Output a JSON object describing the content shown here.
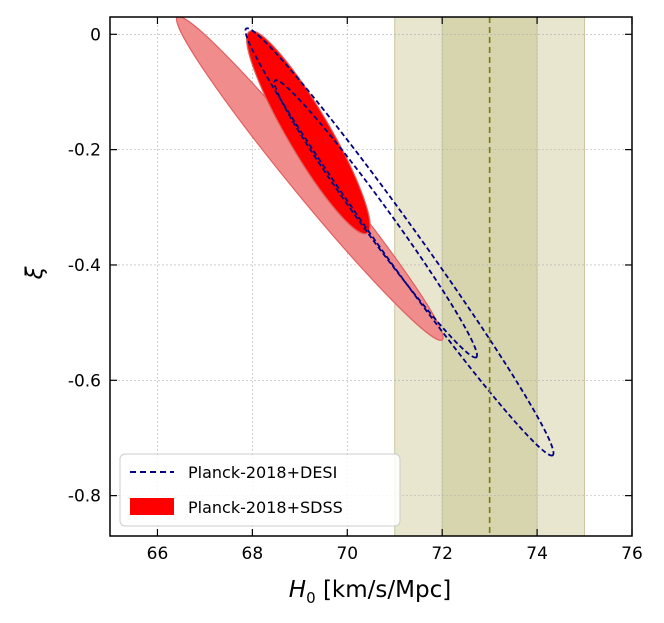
{
  "chart_data": {
    "type": "contour",
    "xlabel_symbol": "H",
    "xlabel_subscript": "0",
    "xlabel_units": "[km/s/Mpc]",
    "ylabel": "ξ",
    "xlim": [
      65,
      76
    ],
    "ylim": [
      -0.87,
      0.03
    ],
    "xticks": [
      66,
      68,
      70,
      72,
      74,
      76
    ],
    "xtick_labels": [
      "66",
      "68",
      "70",
      "72",
      "74",
      "76"
    ],
    "yticks": [
      0,
      -0.2,
      -0.4,
      -0.6,
      -0.8
    ],
    "ytick_labels": [
      "0",
      "-0.2",
      "-0.4",
      "-0.6",
      "-0.8"
    ],
    "grid": true,
    "legend_position": "lower-left",
    "bands": [
      {
        "name": "H0 2-sigma band",
        "x_range": [
          71,
          75
        ],
        "color": "#e8e6cf"
      },
      {
        "name": "H0 1-sigma band",
        "x_range": [
          72,
          74
        ],
        "color": "#d6d5ae"
      }
    ],
    "reference_line": {
      "x": 73,
      "color": "#7a7a0a",
      "style": "dashed"
    },
    "series": [
      {
        "name": "Planck-2018+SDSS",
        "kind": "filled",
        "color": "#ff0000",
        "contours": [
          {
            "level": "95%",
            "center": [
              69.21,
              -0.25
            ],
            "axis_end": [
              72.0,
              -0.53
            ],
            "half_width": 0.4,
            "fill": "#f08c8c"
          },
          {
            "level": "68%",
            "center": [
              69.18,
              -0.17
            ],
            "axis_end": [
              70.42,
              -0.345
            ],
            "half_width": 0.45,
            "fill": "#ff0000"
          }
        ]
      },
      {
        "name": "Planck-2018+DESI",
        "kind": "dashed",
        "color": "#000080",
        "contours": [
          {
            "level": "95%",
            "center": [
              71.1,
              -0.36
            ],
            "axis_end": [
              74.33,
              -0.73
            ],
            "half_width": 0.4
          },
          {
            "level": "68%",
            "center": [
              70.6,
              -0.32
            ],
            "axis_end": [
              72.72,
              -0.56
            ],
            "half_width": 0.31
          }
        ]
      }
    ],
    "legend": [
      {
        "label": "Planck-2018+DESI",
        "style": "dashed",
        "color": "#000080"
      },
      {
        "label": "Planck-2018+SDSS",
        "style": "filled",
        "color": "#ff0000"
      }
    ]
  }
}
